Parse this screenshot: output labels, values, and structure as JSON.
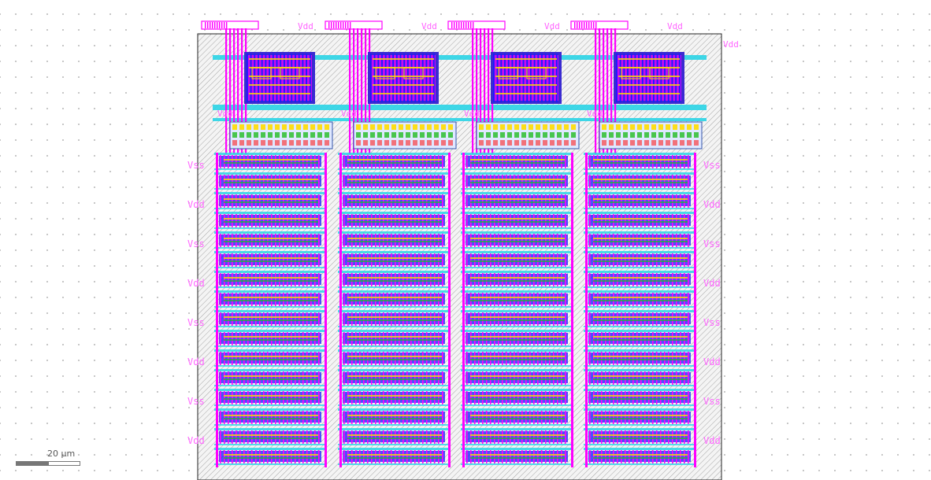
{
  "viewer": {
    "scale_bar": {
      "label": "20 µm"
    }
  },
  "layout": {
    "columns": 4,
    "bit_rows": 16,
    "colors": {
      "metal1": "#1a1aff",
      "metal2": "#ff00ff",
      "metal3": "#2ad4e6",
      "poly": "#ff2222",
      "diffusion": "#22bb22",
      "implant": "#ffdd00",
      "boundary": "#222222",
      "hatch": "#9a9a9a",
      "label": "#ff66ff"
    },
    "labels": {
      "vdd": "Vdd",
      "vss": "Vss",
      "top_pins": [
        "Vdd",
        "Vdd",
        "Vdd",
        "Vdd"
      ],
      "side_pins": [
        "Vss",
        "Vdd",
        "Vss",
        "Vdd",
        "Vss",
        "Vdd",
        "Vss",
        "Vdd"
      ]
    }
  }
}
